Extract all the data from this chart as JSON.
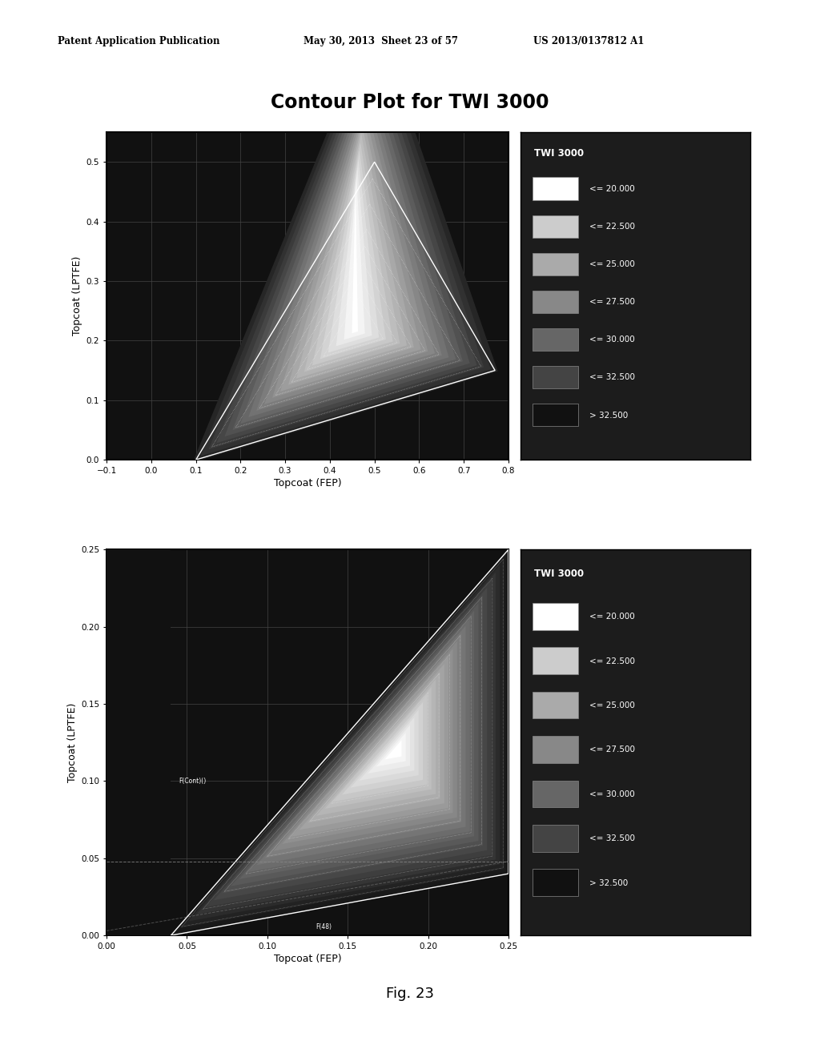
{
  "title": "Contour Plot for TWI 3000",
  "header_left": "Patent Application Publication",
  "header_mid": "May 30, 2013  Sheet 23 of 57",
  "header_right": "US 2013/0137812 A1",
  "fig_label": "Fig. 23",
  "legend_title": "TWI 3000",
  "legend_labels": [
    "<= 20.000",
    "<= 22.500",
    "<= 25.000",
    "<= 27.500",
    "<= 30.000",
    "<= 32.500",
    "> 32.500"
  ],
  "legend_colors": [
    "#ffffff",
    "#cccccc",
    "#aaaaaa",
    "#888888",
    "#666666",
    "#444444",
    "#111111"
  ],
  "plot1": {
    "xlim": [
      -0.1,
      0.8
    ],
    "ylim": [
      0.0,
      0.55
    ],
    "xticks": [
      -0.1,
      0.0,
      0.1,
      0.2,
      0.3,
      0.4,
      0.5,
      0.6,
      0.7,
      0.8
    ],
    "yticks": [
      0.0,
      0.1,
      0.2,
      0.3,
      0.4,
      0.5
    ],
    "xlabel": "Topcoat (FEP)",
    "ylabel": "Topcoat (LPTFE)",
    "bg_color": "#111111",
    "grid_color": "#444444"
  },
  "plot2": {
    "xlim": [
      0.0,
      0.25
    ],
    "ylim": [
      0.0,
      0.25
    ],
    "xticks": [
      0.0,
      0.05,
      0.1,
      0.15,
      0.2,
      0.25
    ],
    "yticks": [
      0.0,
      0.05,
      0.1,
      0.15,
      0.2,
      0.25
    ],
    "xlabel": "Topcoat (FEP)",
    "ylabel": "Topcoat (LPTFE)",
    "bg_color": "#111111",
    "grid_color": "#444444",
    "annotation1": "F(Cont)()",
    "annotation2": "F(48)"
  },
  "frame_color": "#000000",
  "outer_bg": "#ffffff"
}
